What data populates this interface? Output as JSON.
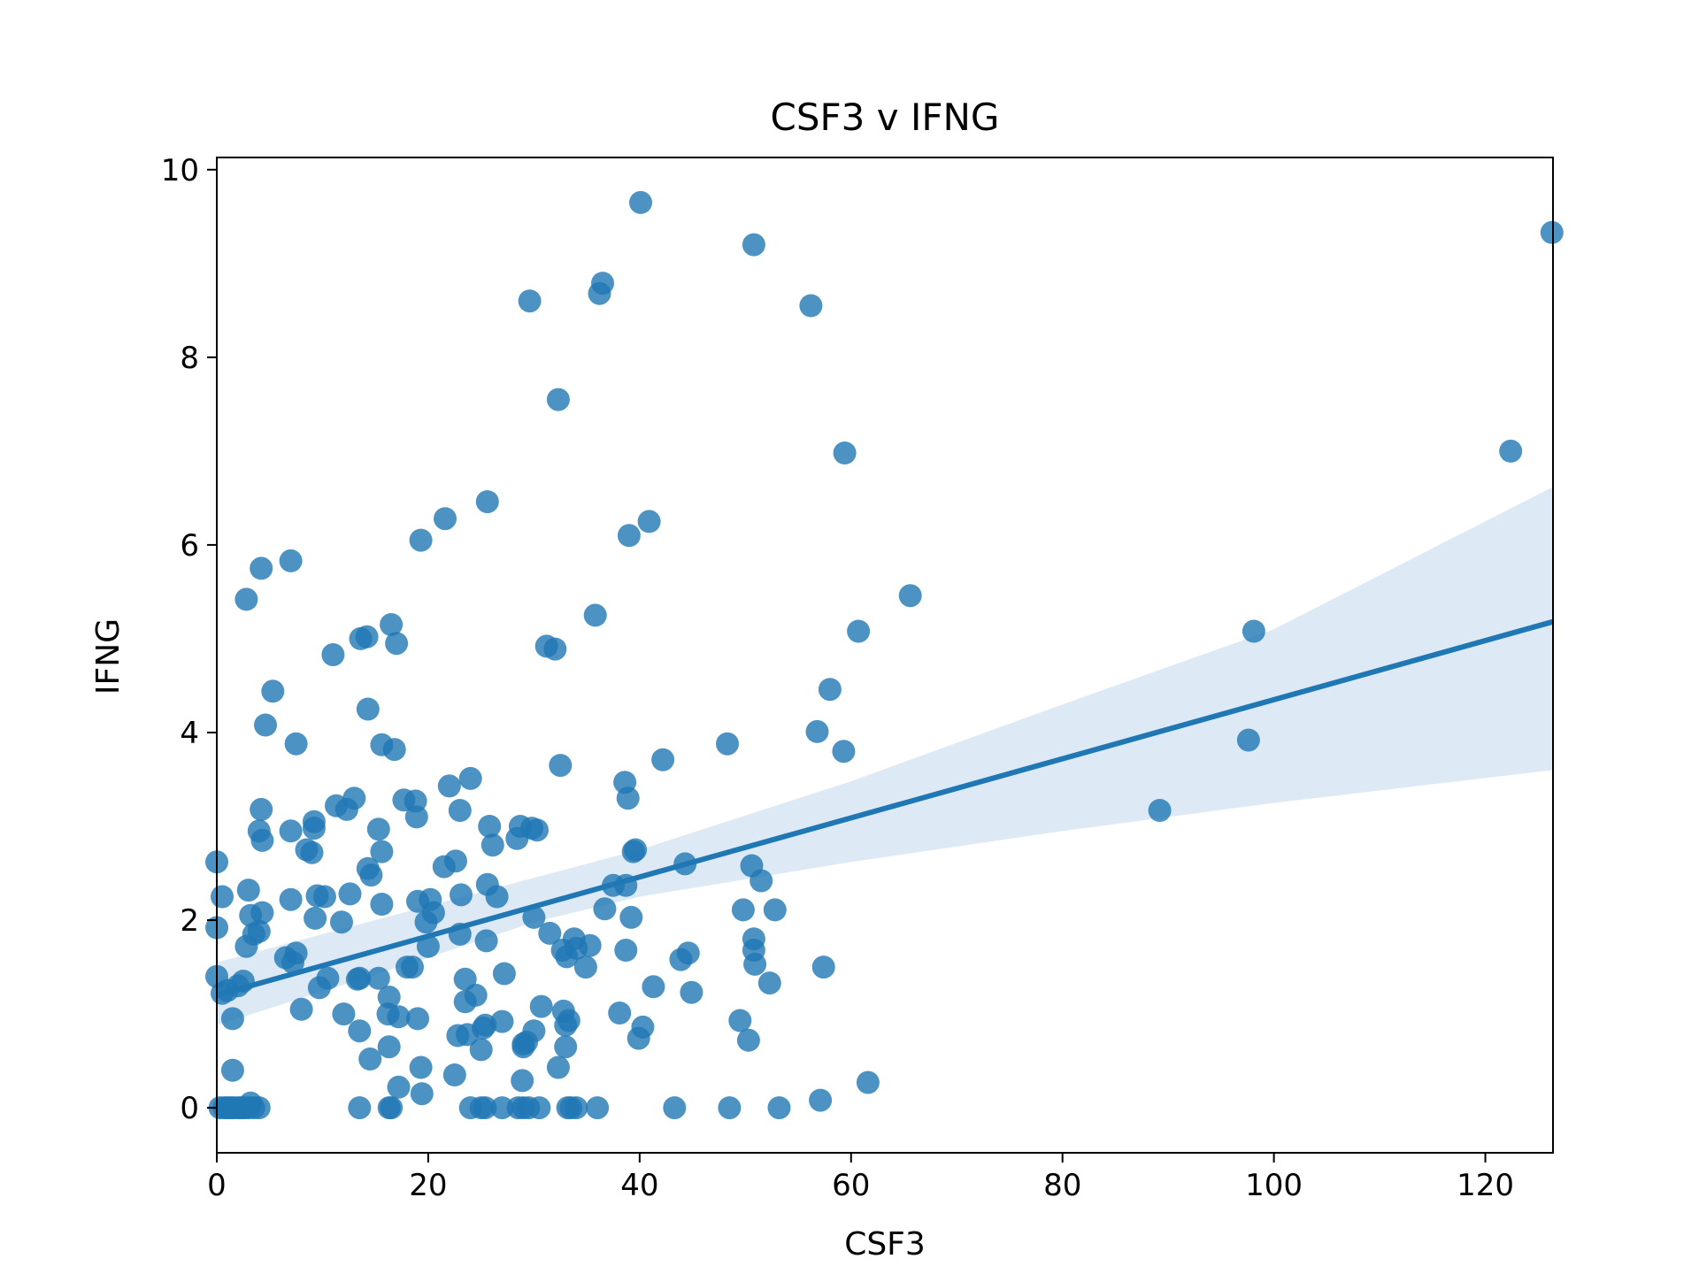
{
  "chart_data": {
    "type": "scatter",
    "title": "CSF3 v IFNG",
    "xlabel": "CSF3",
    "ylabel": "IFNG",
    "xlim": [
      0,
      126.4
    ],
    "ylim": [
      -0.48,
      10.13
    ],
    "xticks": [
      0,
      20,
      40,
      60,
      80,
      100,
      120
    ],
    "yticks": [
      0,
      2,
      4,
      6,
      8,
      10
    ],
    "grid": false,
    "legend": "none",
    "colors": {
      "points": "#1f77b4",
      "line": "#1f77b4",
      "band": "#c6dbef"
    },
    "regression": {
      "intercept": 1.2,
      "slope": 0.0315,
      "ci_band": [
        [
          0,
          0.88,
          1.55
        ],
        [
          20,
          1.6,
          2.15
        ],
        [
          30,
          1.98,
          2.45
        ],
        [
          40,
          2.25,
          2.75
        ],
        [
          60,
          2.62,
          3.48
        ],
        [
          80,
          2.95,
          4.3
        ],
        [
          100,
          3.25,
          5.1
        ],
        [
          126.4,
          3.6,
          6.62
        ]
      ]
    },
    "points": [
      [
        0,
        2.62
      ],
      [
        0,
        1.92
      ],
      [
        0,
        1.4
      ],
      [
        0.5,
        2.25
      ],
      [
        0.5,
        1.22
      ],
      [
        1,
        1.25
      ],
      [
        1.5,
        0.95
      ],
      [
        1.5,
        0.4
      ],
      [
        2,
        1.3
      ],
      [
        2.5,
        1.35
      ],
      [
        2.8,
        5.42
      ],
      [
        2.8,
        1.72
      ],
      [
        3,
        2.32
      ],
      [
        3.2,
        2.05
      ],
      [
        3.5,
        1.85
      ],
      [
        4,
        2.95
      ],
      [
        4,
        1.88
      ],
      [
        4.2,
        3.18
      ],
      [
        4.2,
        5.75
      ],
      [
        4.3,
        2.85
      ],
      [
        4.3,
        2.08
      ],
      [
        4.6,
        4.08
      ],
      [
        5.3,
        4.44
      ],
      [
        6.5,
        1.6
      ],
      [
        7,
        5.83
      ],
      [
        7,
        2.95
      ],
      [
        7,
        2.22
      ],
      [
        7.2,
        1.55
      ],
      [
        7.5,
        1.65
      ],
      [
        7.5,
        3.88
      ],
      [
        8,
        1.05
      ],
      [
        8.5,
        2.75
      ],
      [
        9,
        2.72
      ],
      [
        9.2,
        2.98
      ],
      [
        9.2,
        3.05
      ],
      [
        9.3,
        2.02
      ],
      [
        9.5,
        2.26
      ],
      [
        9.7,
        1.28
      ],
      [
        10.2,
        2.25
      ],
      [
        10.5,
        1.38
      ],
      [
        11,
        4.83
      ],
      [
        11.3,
        3.22
      ],
      [
        11.8,
        1.98
      ],
      [
        12,
        1.0
      ],
      [
        12.3,
        3.18
      ],
      [
        12.6,
        2.28
      ],
      [
        13,
        3.3
      ],
      [
        13.3,
        1.37
      ],
      [
        13.5,
        1.38
      ],
      [
        13.5,
        0.82
      ],
      [
        13.6,
        5.0
      ],
      [
        14.2,
        5.02
      ],
      [
        14.3,
        4.25
      ],
      [
        14.3,
        2.55
      ],
      [
        14.6,
        2.48
      ],
      [
        14.5,
        0.52
      ],
      [
        15.3,
        2.97
      ],
      [
        15.3,
        1.38
      ],
      [
        15.6,
        2.73
      ],
      [
        15.6,
        2.17
      ],
      [
        15.6,
        3.87
      ],
      [
        16.2,
        1.0
      ],
      [
        16.3,
        1.18
      ],
      [
        16.3,
        0.65
      ],
      [
        16.5,
        5.15
      ],
      [
        16.8,
        3.82
      ],
      [
        17,
        4.95
      ],
      [
        17.2,
        0.97
      ],
      [
        17.2,
        0.22
      ],
      [
        17.7,
        3.28
      ],
      [
        18,
        1.5
      ],
      [
        18.5,
        1.5
      ],
      [
        18.8,
        3.27
      ],
      [
        18.9,
        3.1
      ],
      [
        19,
        2.2
      ],
      [
        19,
        0.95
      ],
      [
        19.3,
        6.05
      ],
      [
        19.3,
        0.43
      ],
      [
        19.4,
        0.15
      ],
      [
        19.8,
        1.98
      ],
      [
        20,
        1.72
      ],
      [
        20.2,
        2.22
      ],
      [
        20.5,
        2.08
      ],
      [
        21.5,
        2.57
      ],
      [
        21.6,
        6.28
      ],
      [
        22,
        3.43
      ],
      [
        22.5,
        0.35
      ],
      [
        22.6,
        2.63
      ],
      [
        22.8,
        0.77
      ],
      [
        23,
        3.17
      ],
      [
        23,
        1.85
      ],
      [
        23.1,
        2.27
      ],
      [
        23.5,
        1.13
      ],
      [
        23.5,
        1.37
      ],
      [
        23.7,
        0.78
      ],
      [
        24,
        3.51
      ],
      [
        24.5,
        1.2
      ],
      [
        25,
        0.62
      ],
      [
        25.2,
        0.85
      ],
      [
        25.4,
        0.88
      ],
      [
        25.5,
        1.78
      ],
      [
        25.6,
        6.46
      ],
      [
        25.6,
        2.38
      ],
      [
        25.8,
        3.0
      ],
      [
        26.1,
        2.8
      ],
      [
        26.5,
        2.25
      ],
      [
        27,
        0.92
      ],
      [
        27.2,
        1.43
      ],
      [
        28.4,
        2.87
      ],
      [
        28.7,
        3.0
      ],
      [
        28.9,
        0.29
      ],
      [
        29,
        0.65
      ],
      [
        29,
        0.68
      ],
      [
        29.3,
        0.7
      ],
      [
        29.6,
        8.6
      ],
      [
        29.8,
        2.98
      ],
      [
        30,
        0.82
      ],
      [
        30,
        2.03
      ],
      [
        30.3,
        2.96
      ],
      [
        30.7,
        1.08
      ],
      [
        31.2,
        4.92
      ],
      [
        31.5,
        1.86
      ],
      [
        32,
        4.89
      ],
      [
        32.3,
        7.55
      ],
      [
        32.3,
        0.43
      ],
      [
        32.5,
        3.65
      ],
      [
        32.7,
        1.68
      ],
      [
        32.8,
        1.03
      ],
      [
        33,
        0.65
      ],
      [
        33,
        0.88
      ],
      [
        33.1,
        1.61
      ],
      [
        33.3,
        0.93
      ],
      [
        33.8,
        1.8
      ],
      [
        34,
        1.7
      ],
      [
        34.9,
        1.5
      ],
      [
        35.3,
        1.73
      ],
      [
        35.8,
        5.25
      ],
      [
        36.2,
        8.68
      ],
      [
        36.5,
        8.79
      ],
      [
        36.7,
        2.12
      ],
      [
        37.5,
        2.37
      ],
      [
        38.1,
        1.01
      ],
      [
        38.6,
        3.47
      ],
      [
        38.7,
        1.68
      ],
      [
        38.7,
        2.37
      ],
      [
        38.9,
        3.3
      ],
      [
        39,
        6.1
      ],
      [
        39.2,
        2.03
      ],
      [
        39.4,
        2.73
      ],
      [
        39.6,
        2.75
      ],
      [
        39.9,
        0.74
      ],
      [
        40.1,
        9.65
      ],
      [
        40.3,
        0.86
      ],
      [
        40.9,
        6.25
      ],
      [
        41.3,
        1.29
      ],
      [
        42.2,
        3.71
      ],
      [
        43.9,
        1.58
      ],
      [
        44.3,
        2.6
      ],
      [
        44.6,
        1.65
      ],
      [
        44.9,
        1.23
      ],
      [
        48.3,
        3.88
      ],
      [
        49.5,
        0.93
      ],
      [
        49.8,
        2.11
      ],
      [
        50.3,
        0.72
      ],
      [
        50.6,
        2.58
      ],
      [
        50.8,
        9.2
      ],
      [
        50.8,
        1.8
      ],
      [
        50.8,
        1.68
      ],
      [
        50.9,
        1.53
      ],
      [
        51.5,
        2.42
      ],
      [
        52.3,
        1.33
      ],
      [
        52.8,
        2.11
      ],
      [
        56.2,
        8.55
      ],
      [
        56.8,
        4.01
      ],
      [
        57.4,
        1.5
      ],
      [
        58,
        4.46
      ],
      [
        59.3,
        3.8
      ],
      [
        59.4,
        6.98
      ],
      [
        60.7,
        5.08
      ],
      [
        65.6,
        5.46
      ],
      [
        89.2,
        3.17
      ],
      [
        97.6,
        3.92
      ],
      [
        98.1,
        5.08
      ],
      [
        122.4,
        7.0
      ],
      [
        126.3,
        9.33
      ],
      [
        0.3,
        0
      ],
      [
        0.7,
        0
      ],
      [
        1,
        0
      ],
      [
        1.3,
        0
      ],
      [
        1.6,
        0
      ],
      [
        2,
        0
      ],
      [
        2.3,
        0
      ],
      [
        2.6,
        0
      ],
      [
        3,
        0
      ],
      [
        3.2,
        0.05
      ],
      [
        3.5,
        0
      ],
      [
        4,
        0
      ],
      [
        13.5,
        0
      ],
      [
        16.3,
        0
      ],
      [
        16.5,
        0
      ],
      [
        24,
        0
      ],
      [
        25,
        0
      ],
      [
        25.4,
        0
      ],
      [
        27,
        0
      ],
      [
        28.5,
        0
      ],
      [
        29,
        0
      ],
      [
        29.5,
        0
      ],
      [
        30.5,
        0
      ],
      [
        33.2,
        0
      ],
      [
        33.5,
        0
      ],
      [
        34,
        0
      ],
      [
        36,
        0
      ],
      [
        43.3,
        0
      ],
      [
        48.5,
        0
      ],
      [
        53.2,
        0
      ],
      [
        57.1,
        0.08
      ],
      [
        61.6,
        0.27
      ]
    ]
  }
}
